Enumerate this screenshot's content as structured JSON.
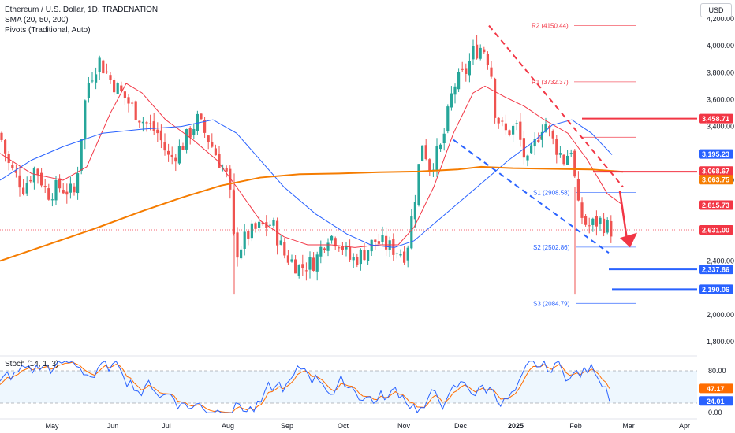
{
  "header": {
    "title": "Ethereum / U.S. Dollar, 1D, TRADENATION",
    "sma_label": "SMA (20, 50, 200)",
    "pivots_label": "Pivots (Traditional, Auto)",
    "currency_button": "USD"
  },
  "stoch": {
    "label": "Stoch (14, 1, 3)"
  },
  "colors": {
    "sma20": "#f23645",
    "sma50": "#2962ff",
    "sma200": "#f57c00",
    "candle_up": "#26a69a",
    "candle_down": "#ef5350",
    "pivot": "#f23645",
    "pivot_support": "#2962ff",
    "stoch_k": "#2962ff",
    "stoch_d": "#ff6d00",
    "stoch_band": "#e3f2fd",
    "trendline": "#f23645",
    "support_line": "#2962ff"
  },
  "chart_data": [
    {
      "type": "candlestick",
      "x_axis": {
        "labels": [
          "May",
          "Jun",
          "Jul",
          "Aug",
          "Sep",
          "Oct",
          "Nov",
          "Dec",
          "2025",
          "Feb",
          "Mar",
          "Apr"
        ]
      },
      "y_axis": {
        "ticks": [
          "4,200.00",
          "4,000.00",
          "3,800.00",
          "3,600.00",
          "3,400.00",
          "3,000.00",
          "2,400.00",
          "2,000.00",
          "1,800.00"
        ],
        "range": [
          1700,
          4250
        ]
      },
      "price_labels": [
        {
          "value": "3,458.71",
          "color": "#f23645"
        },
        {
          "value": "3,195.23",
          "color": "#2962ff"
        },
        {
          "value": "3,068.67",
          "color": "#f23645"
        },
        {
          "value": "3,063.75",
          "color": "#f57c00"
        },
        {
          "value": "2,815.73",
          "color": "#f23645"
        },
        {
          "value": "2,631.00",
          "color": "#f23645"
        },
        {
          "value": "2,337.86",
          "color": "#2962ff"
        },
        {
          "value": "2,190.06",
          "color": "#2962ff"
        }
      ],
      "pivot_levels": [
        {
          "label": "R2 (4150.44)",
          "value": 4150.44
        },
        {
          "label": "R1 (3732.37)",
          "value": 3732.37
        },
        {
          "label": "P",
          "value": 3320
        },
        {
          "label": "S1 (2908.58)",
          "value": 2908.58
        },
        {
          "label": "S2 (2502.86)",
          "value": 2502.86
        },
        {
          "label": "S3 (2084.79)",
          "value": 2084.79
        }
      ],
      "horizontal_levels": [
        3458.71,
        3063.75,
        2337.86,
        2190.06
      ],
      "last_price": 2631.0
    },
    {
      "type": "line",
      "title": "Stoch (14, 1, 3)",
      "y_axis": {
        "ticks": [
          "80.00",
          "0.00"
        ],
        "range": [
          0,
          100
        ]
      },
      "band": [
        20,
        80
      ],
      "latest": {
        "k": "47.17",
        "d": "24.01"
      }
    }
  ]
}
